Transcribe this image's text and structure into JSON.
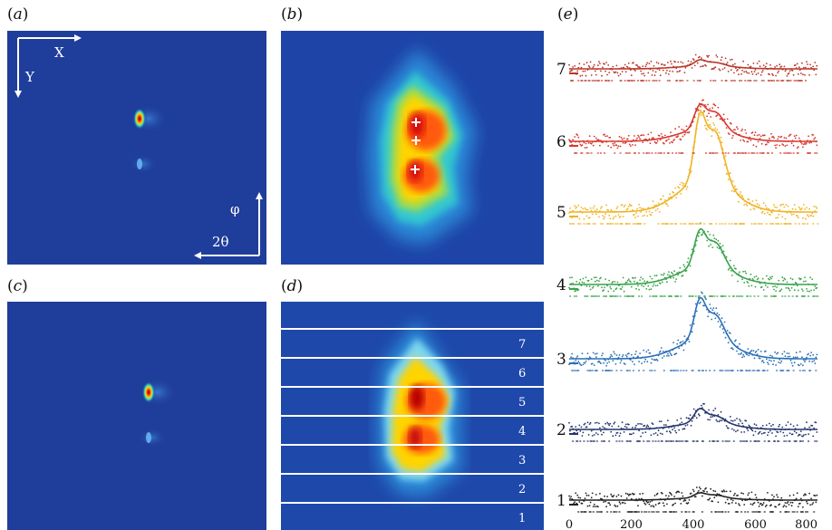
{
  "panels": {
    "a": {
      "label": "a",
      "axes": {
        "x": "X",
        "y": "Y",
        "phi": "φ",
        "two_theta": "2θ"
      }
    },
    "b": {
      "label": "b"
    },
    "c": {
      "label": "c"
    },
    "d": {
      "label": "d",
      "bands": [
        "7",
        "6",
        "5",
        "4",
        "3",
        "2",
        "1"
      ]
    },
    "e": {
      "label": "e"
    }
  },
  "chart_data": {
    "type": "line",
    "x_ticks": [
      "0",
      "200",
      "400",
      "600",
      "800"
    ],
    "xlim": [
      0,
      800
    ],
    "series": [
      {
        "id": "1",
        "color": "#222222",
        "baseline": 0,
        "peak1": 0.12,
        "peak2": 0.08
      },
      {
        "id": "2",
        "color": "#23356b",
        "baseline": 0,
        "peak1": 0.35,
        "peak2": 0.2
      },
      {
        "id": "3",
        "color": "#2a6fb5",
        "baseline": 0,
        "peak1": 1.0,
        "peak2": 0.7
      },
      {
        "id": "4",
        "color": "#3aa34a",
        "baseline": 0,
        "peak1": 0.9,
        "peak2": 0.7
      },
      {
        "id": "5",
        "color": "#f0b323",
        "baseline": 0,
        "peak1": 1.6,
        "peak2": 1.4
      },
      {
        "id": "6",
        "color": "#d7382e",
        "baseline": 0,
        "peak1": 0.6,
        "peak2": 0.5
      },
      {
        "id": "7",
        "color": "#b9372a",
        "baseline": 0,
        "peak1": 0.15,
        "peak2": 0.1
      }
    ]
  },
  "colors": {
    "background_blue": "#1f3d9a"
  }
}
